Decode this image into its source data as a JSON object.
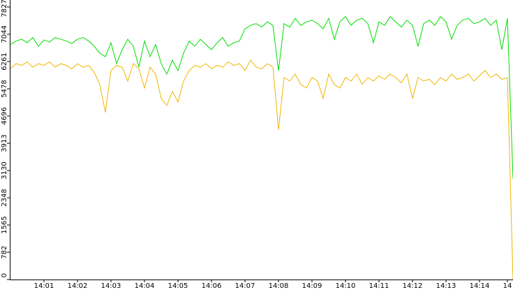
{
  "chart_data": {
    "type": "line",
    "categories": [
      null,
      null,
      null,
      null,
      null,
      null,
      "14:01",
      null,
      null,
      null,
      null,
      null,
      "14:02",
      null,
      null,
      null,
      null,
      null,
      "14:03",
      null,
      null,
      null,
      null,
      null,
      "14:04",
      null,
      null,
      null,
      null,
      null,
      "14:05",
      null,
      null,
      null,
      null,
      null,
      "14:06",
      null,
      null,
      null,
      null,
      null,
      "14:07",
      null,
      null,
      null,
      null,
      null,
      "14:08",
      null,
      null,
      null,
      null,
      null,
      "14:09",
      null,
      null,
      null,
      null,
      null,
      "14:10",
      null,
      null,
      null,
      null,
      null,
      "14:11",
      null,
      null,
      null,
      null,
      null,
      "14:12",
      null,
      null,
      null,
      null,
      null,
      "14:13",
      null,
      null,
      null,
      null,
      null,
      "14:14",
      null,
      null,
      null,
      null,
      "14",
      null
    ],
    "series": [
      {
        "color": "#00dd00",
        "values": [
          6750,
          6850,
          6900,
          6800,
          6950,
          6700,
          6880,
          6820,
          6950,
          6900,
          6850,
          6780,
          6900,
          6950,
          6850,
          6700,
          6500,
          6400,
          6800,
          6200,
          6600,
          6900,
          6700,
          6100,
          6850,
          6400,
          6750,
          6200,
          5900,
          6300,
          6000,
          6500,
          6850,
          6700,
          6900,
          6750,
          6600,
          6800,
          6950,
          6700,
          6800,
          6850,
          7200,
          7300,
          7350,
          7250,
          7400,
          7300,
          6000,
          7350,
          7250,
          7500,
          7300,
          7400,
          7450,
          7350,
          7200,
          7500,
          6900,
          7400,
          7550,
          7300,
          7450,
          7500,
          7350,
          6800,
          7400,
          7300,
          7550,
          7400,
          7250,
          7450,
          7300,
          6700,
          7350,
          7450,
          7300,
          7550,
          7400,
          6900,
          7300,
          7450,
          7500,
          7350,
          7400,
          7500,
          7300,
          7450,
          6600,
          7500,
          2900
        ]
      },
      {
        "color": "#f0b400",
        "values": [
          6050,
          6200,
          6150,
          6250,
          6100,
          6200,
          6150,
          6250,
          6100,
          6200,
          6150,
          6050,
          6200,
          6100,
          6150,
          5950,
          5600,
          4800,
          6000,
          6150,
          6100,
          5700,
          6200,
          6050,
          5500,
          6100,
          5900,
          5200,
          5000,
          5400,
          5100,
          5700,
          6000,
          6150,
          6100,
          6200,
          6050,
          6150,
          6100,
          6250,
          6150,
          6200,
          6000,
          6300,
          6100,
          6050,
          6200,
          6100,
          4300,
          5800,
          5700,
          5900,
          5600,
          5500,
          5800,
          5700,
          5200,
          5900,
          5600,
          5500,
          5800,
          5700,
          5900,
          5600,
          5800,
          5700,
          5850,
          5750,
          5900,
          5800,
          5650,
          5900,
          5200,
          5800,
          5700,
          5750,
          5600,
          5800,
          5700,
          5900,
          5750,
          5800,
          5900,
          5700,
          5850,
          6000,
          5800,
          5900,
          5750,
          5800,
          0
        ]
      }
    ],
    "ylim": [
      0,
      7827
    ],
    "yticks": [
      0,
      782,
      1565,
      2348,
      3130,
      3913,
      4696,
      5478,
      6261,
      7044,
      7827
    ]
  }
}
